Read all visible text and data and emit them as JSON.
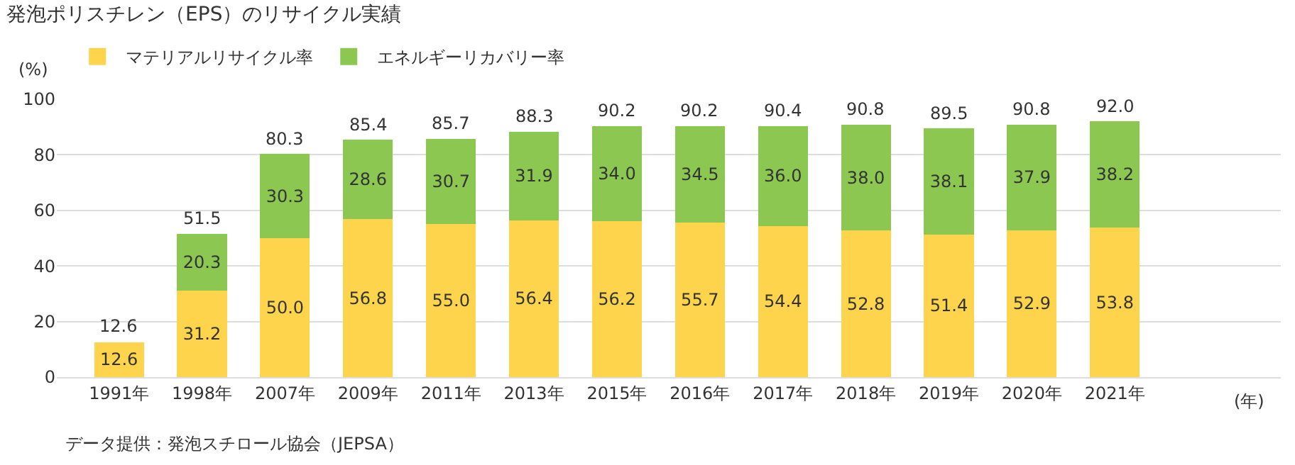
{
  "chart_data": {
    "type": "bar",
    "stacked": true,
    "title": "発泡ポリスチレン（EPS）のリサイクル実績",
    "ylabel": "(%)",
    "xlabel": "(年)",
    "categories": [
      "1991年",
      "1998年",
      "2007年",
      "2009年",
      "2011年",
      "2013年",
      "2015年",
      "2016年",
      "2017年",
      "2018年",
      "2019年",
      "2020年",
      "2021年"
    ],
    "series": [
      {
        "name": "マテリアルリサイクル率",
        "color": "#fdd44c",
        "values": [
          12.6,
          31.2,
          50.0,
          56.8,
          55.0,
          56.4,
          56.2,
          55.7,
          54.4,
          52.8,
          51.4,
          52.9,
          53.8
        ],
        "value_labels": [
          "12.6",
          "31.2",
          "50.0",
          "56.8",
          "55.0",
          "56.4",
          "56.2",
          "55.7",
          "54.4",
          "52.8",
          "51.4",
          "52.9",
          "53.8"
        ]
      },
      {
        "name": "エネルギーリカバリー率",
        "color": "#8bc751",
        "values": [
          null,
          20.3,
          30.3,
          28.6,
          30.7,
          31.9,
          34.0,
          34.5,
          36.0,
          38.0,
          38.1,
          37.9,
          38.2
        ],
        "value_labels": [
          null,
          "20.3",
          "30.3",
          "28.6",
          "30.7",
          "31.9",
          "34.0",
          "34.5",
          "36.0",
          "38.0",
          "38.1",
          "37.9",
          "38.2"
        ]
      }
    ],
    "totals": [
      "12.6",
      "51.5",
      "80.3",
      "85.4",
      "85.7",
      "88.3",
      "90.2",
      "90.2",
      "90.4",
      "90.8",
      "89.5",
      "90.8",
      "92.0"
    ],
    "ylim": [
      0,
      100
    ],
    "yticks": [
      0,
      20,
      40,
      60,
      80,
      100
    ],
    "grid": "y",
    "legend": "top left",
    "annotations": [
      "データ提供：発泡スチロール協会（JEPSA）"
    ]
  }
}
